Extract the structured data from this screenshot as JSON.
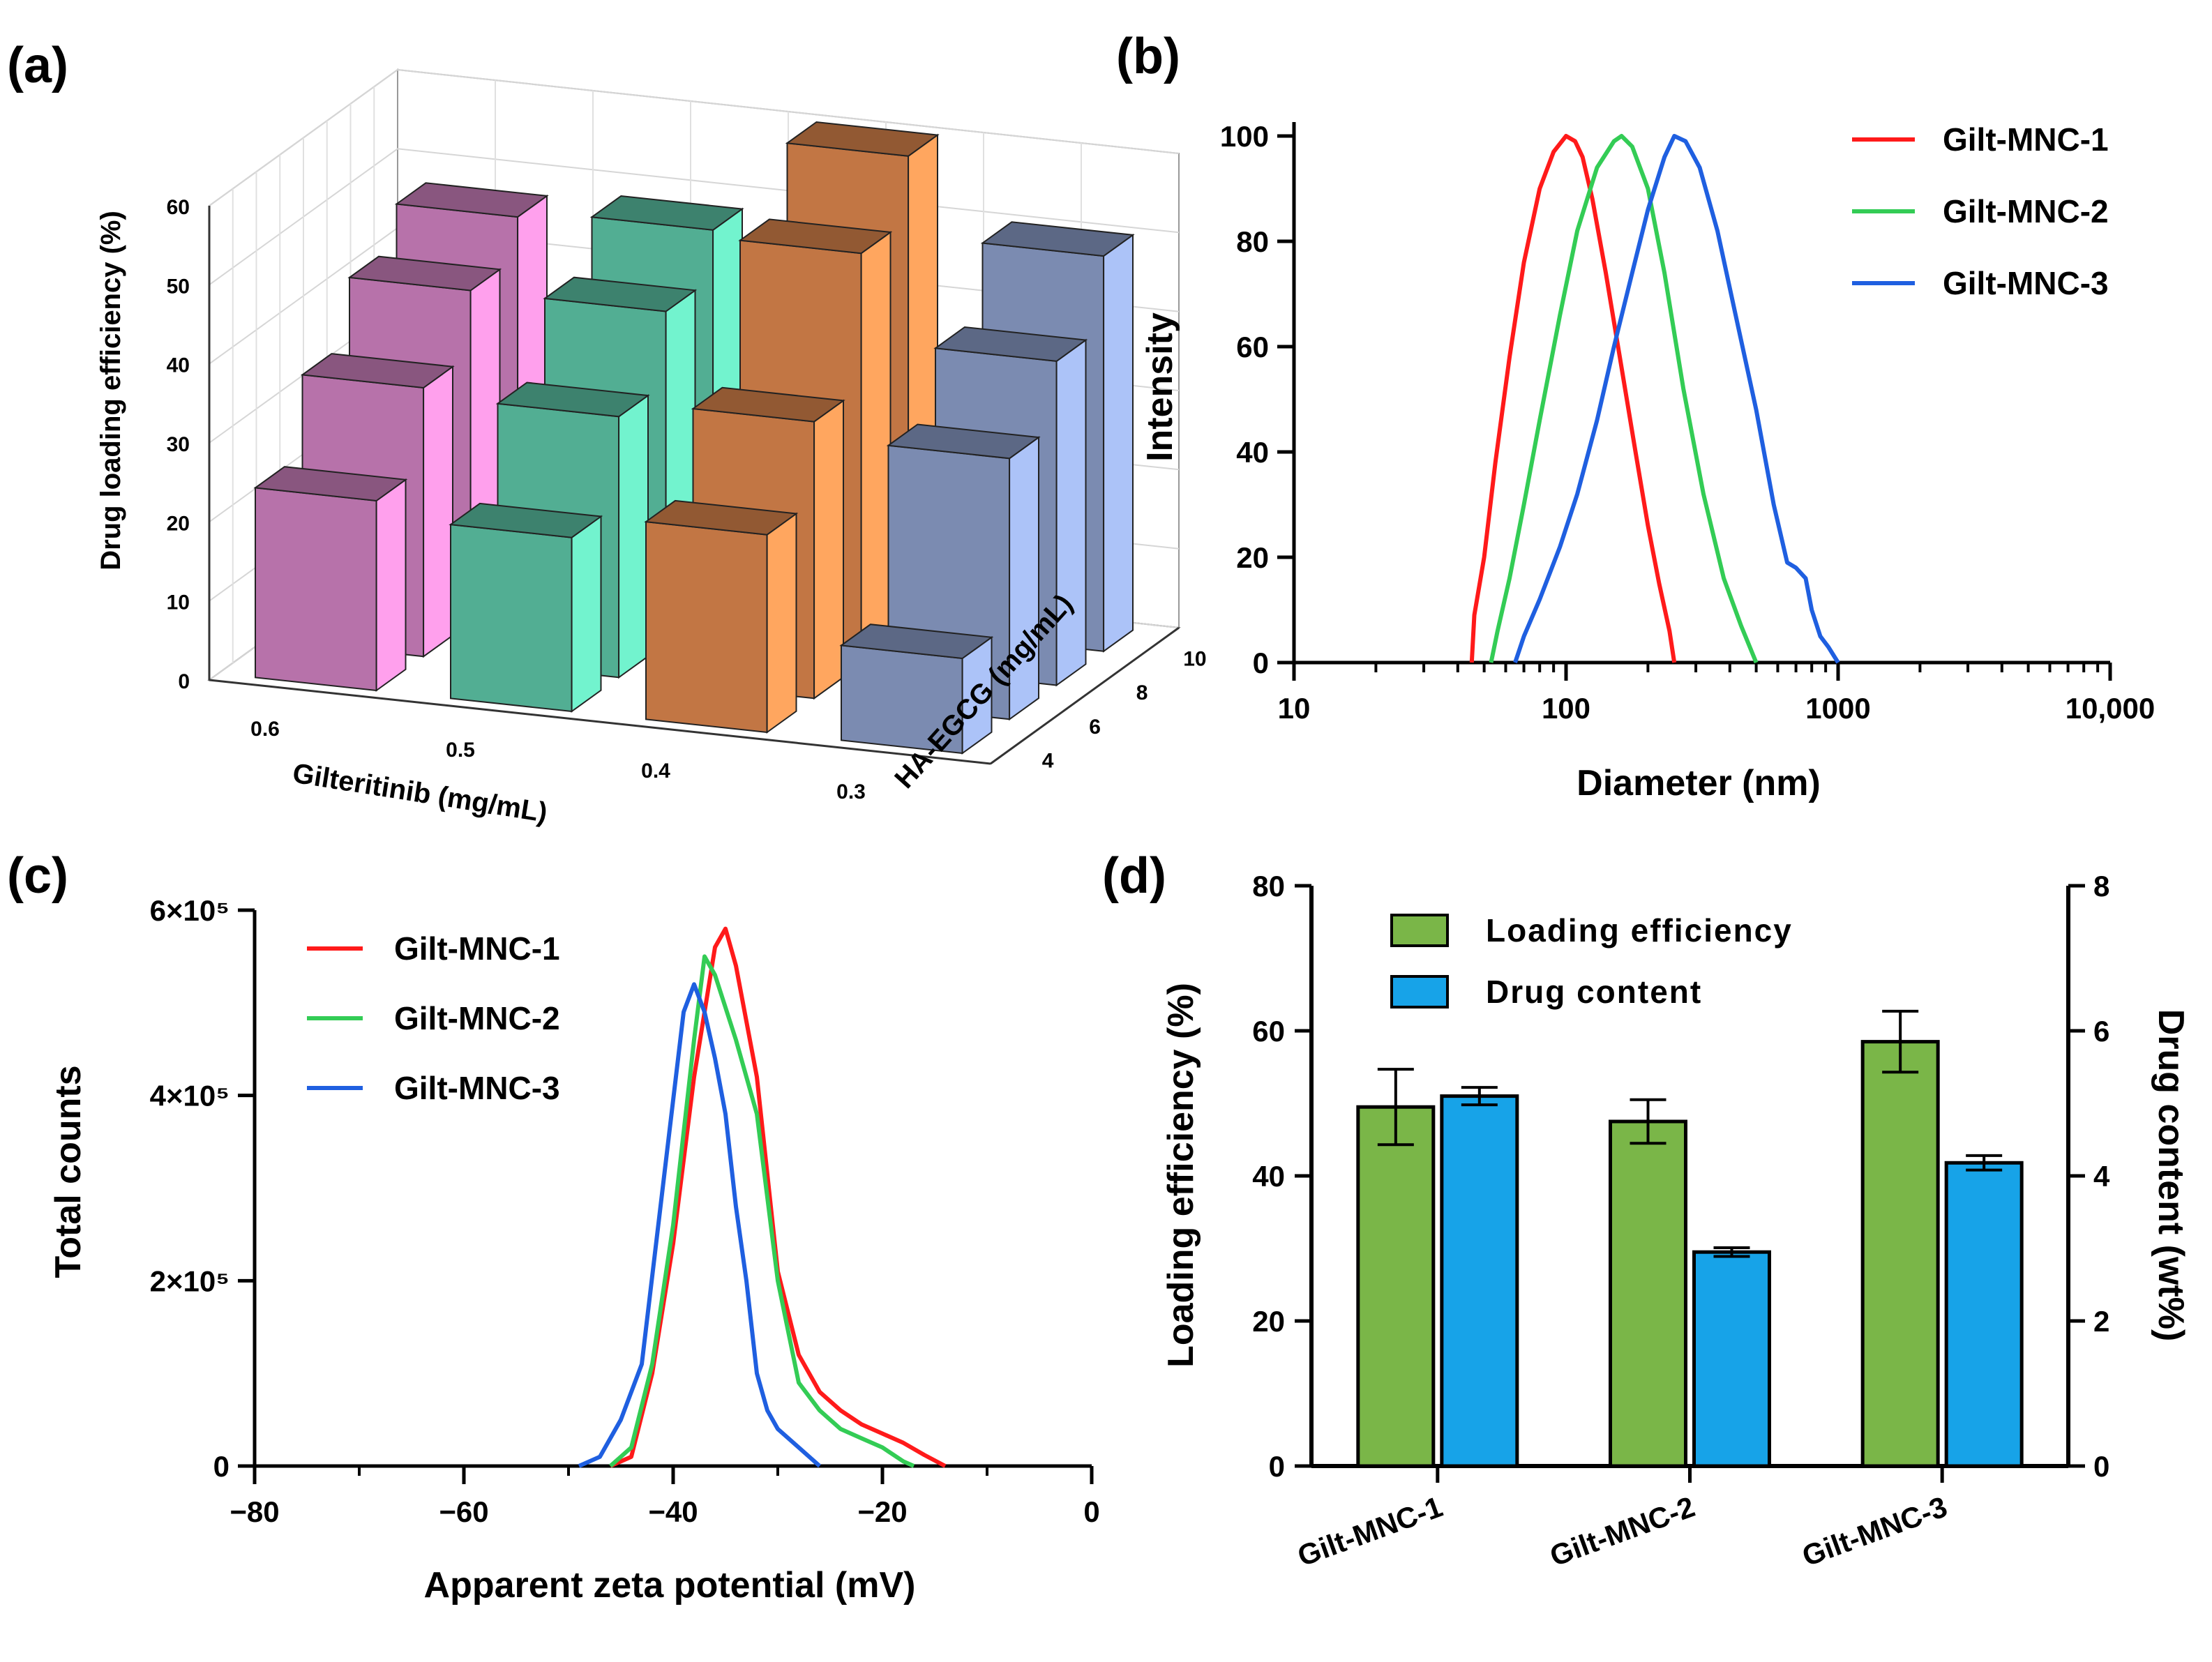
{
  "panel_labels": [
    "(a)",
    "(b)",
    "(c)",
    "(d)"
  ],
  "chart_data": [
    {
      "panel": "(a)",
      "type": "bar",
      "subtype": "3d-bar",
      "title": "",
      "xlabel": "Gilteritinib (mg/mL)",
      "ylabel": "HA-EGCG (mg/mL)",
      "zlabel": "Drug loading efficiency (%)",
      "x_categories": [
        "0.6",
        "0.5",
        "0.4",
        "0.3"
      ],
      "y_categories": [
        "4",
        "6",
        "8",
        "10"
      ],
      "zlim": [
        0,
        60
      ],
      "zticks": [
        "0",
        "10",
        "20",
        "30",
        "40",
        "50",
        "60"
      ],
      "series": [
        {
          "name": "0.6",
          "color": "#e58fd4",
          "values": [
            24,
            34,
            42,
            47
          ]
        },
        {
          "name": "0.5",
          "color": "#66d9b8",
          "values": [
            22,
            33,
            42,
            48
          ]
        },
        {
          "name": "0.4",
          "color": "#f39455",
          "values": [
            25,
            35,
            52,
            60
          ]
        },
        {
          "name": "0.3",
          "color": "#9aaedd",
          "values": [
            12,
            33,
            41,
            50
          ]
        }
      ]
    },
    {
      "panel": "(b)",
      "type": "line",
      "title": "",
      "xlabel": "Diameter (nm)",
      "ylabel": "Intensity",
      "xscale": "log",
      "xlim": [
        10,
        10000
      ],
      "ylim": [
        0,
        100
      ],
      "xticks": [
        "10",
        "100",
        "1000",
        "10,000"
      ],
      "yticks": [
        "0",
        "20",
        "40",
        "60",
        "80",
        "100"
      ],
      "legend_position": "top-right",
      "series": [
        {
          "name": "Gilt-MNC-1",
          "color": "#ff1a1a",
          "x": [
            45,
            46,
            50,
            55,
            62,
            70,
            80,
            90,
            100,
            108,
            115,
            125,
            140,
            160,
            180,
            200,
            220,
            240,
            250
          ],
          "y": [
            0,
            9,
            20,
            38,
            58,
            76,
            90,
            97,
            100,
            99,
            96,
            88,
            74,
            56,
            40,
            26,
            15,
            6,
            0
          ]
        },
        {
          "name": "Gilt-MNC-2",
          "color": "#33cc55",
          "x": [
            53,
            56,
            62,
            70,
            80,
            95,
            110,
            130,
            150,
            160,
            175,
            200,
            230,
            270,
            320,
            380,
            440,
            500
          ],
          "y": [
            0,
            6,
            16,
            30,
            46,
            66,
            82,
            94,
            99,
            100,
            98,
            90,
            74,
            52,
            32,
            16,
            7,
            0
          ]
        },
        {
          "name": "Gilt-MNC-3",
          "color": "#1f5fe0",
          "x": [
            65,
            70,
            80,
            95,
            110,
            130,
            150,
            175,
            200,
            230,
            250,
            275,
            310,
            360,
            420,
            500,
            580,
            650,
            700,
            760,
            800,
            860,
            920,
            1000
          ],
          "y": [
            0,
            5,
            12,
            22,
            32,
            46,
            60,
            74,
            86,
            96,
            100,
            99,
            94,
            82,
            66,
            48,
            30,
            19,
            18,
            16,
            10,
            5,
            3,
            0
          ]
        }
      ]
    },
    {
      "panel": "(c)",
      "type": "line",
      "title": "",
      "xlabel": "Apparent zeta potential (mV)",
      "ylabel": "Total counts",
      "xlim": [
        -80,
        0
      ],
      "ylim": [
        0,
        600000
      ],
      "xticks": [
        "−80",
        "−60",
        "−40",
        "−20",
        "0"
      ],
      "yticks": [
        "0",
        "2×10⁵",
        "4×10⁵",
        "6×10⁵"
      ],
      "legend_position": "top-left",
      "series": [
        {
          "name": "Gilt-MNC-1",
          "color": "#ff1a1a",
          "x": [
            -46,
            -44,
            -42,
            -40,
            -38,
            -36,
            -35,
            -34,
            -32,
            -30,
            -28,
            -26,
            -24,
            -22,
            -20,
            -18,
            -16,
            -14
          ],
          "y": [
            0,
            10000,
            100000,
            240000,
            420000,
            560000,
            580000,
            540000,
            420000,
            210000,
            120000,
            80000,
            60000,
            45000,
            35000,
            25000,
            12000,
            0
          ]
        },
        {
          "name": "Gilt-MNC-2",
          "color": "#33cc55",
          "x": [
            -46,
            -44,
            -42,
            -40,
            -38,
            -37,
            -36,
            -34,
            -32,
            -30,
            -28,
            -26,
            -24,
            -22,
            -20,
            -18,
            -17
          ],
          "y": [
            0,
            20000,
            110000,
            260000,
            460000,
            550000,
            530000,
            460000,
            380000,
            200000,
            90000,
            60000,
            40000,
            30000,
            20000,
            5000,
            0
          ]
        },
        {
          "name": "Gilt-MNC-3",
          "color": "#1f5fe0",
          "x": [
            -49,
            -47,
            -45,
            -43,
            -41,
            -39,
            -38,
            -37,
            -36,
            -35,
            -34,
            -33,
            -32,
            -31,
            -30,
            -28,
            -26
          ],
          "y": [
            0,
            10000,
            50000,
            110000,
            300000,
            490000,
            520000,
            490000,
            440000,
            380000,
            280000,
            200000,
            100000,
            60000,
            40000,
            20000,
            0
          ]
        }
      ]
    },
    {
      "panel": "(d)",
      "type": "bar",
      "subtype": "grouped-bar-dual-axis",
      "title": "",
      "categories": [
        "Gilt-MNC-1",
        "Gilt-MNC-2",
        "Gilt-MNC-3"
      ],
      "ylabel": "Loading efficiency (%)",
      "ylabel_right": "Drug content (wt%)",
      "ylim": [
        0,
        80
      ],
      "ylim_right": [
        0,
        8
      ],
      "yticks": [
        "0",
        "20",
        "40",
        "60",
        "80"
      ],
      "yticks_right": [
        "0",
        "2",
        "4",
        "6",
        "8"
      ],
      "legend_position": "top-center",
      "series": [
        {
          "name": "Loading efficiency",
          "axis": "left",
          "color": "#7ab648",
          "values": [
            49.5,
            47.5,
            58.5
          ],
          "errors": [
            5.2,
            3.0,
            4.2
          ]
        },
        {
          "name": "Drug content",
          "axis": "right",
          "color": "#17a3e8",
          "values": [
            5.1,
            2.95,
            4.18
          ],
          "errors": [
            0.12,
            0.06,
            0.1
          ]
        }
      ]
    }
  ]
}
